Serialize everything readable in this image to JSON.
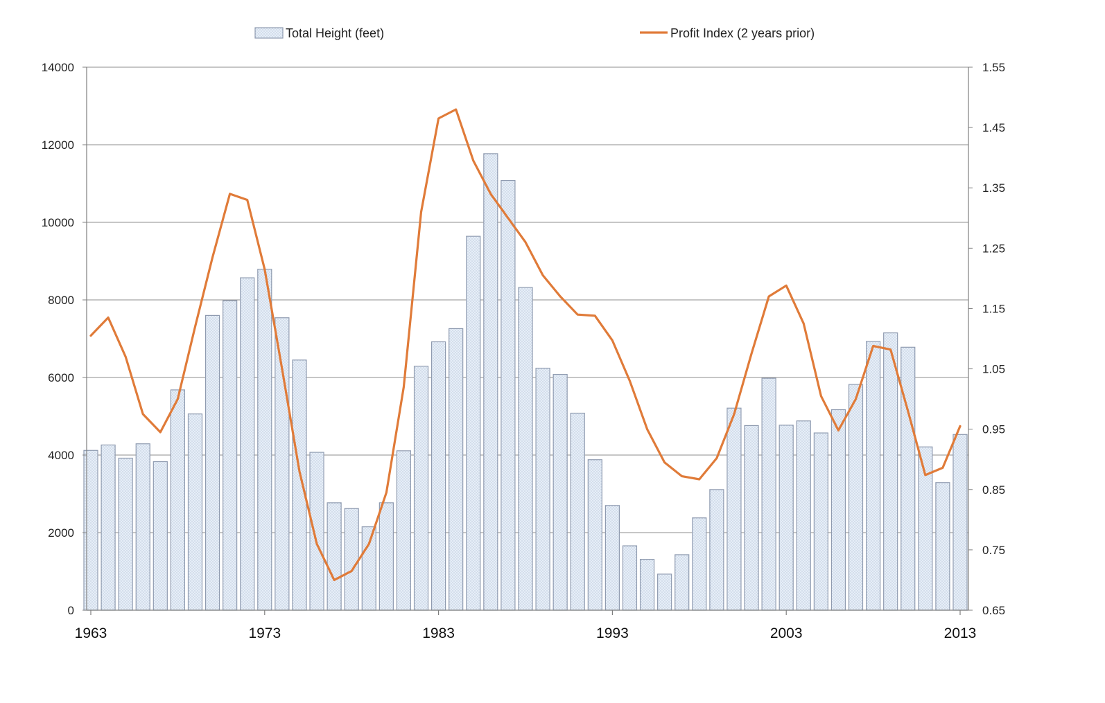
{
  "chart_data": {
    "type": "bar",
    "legend_position": "top",
    "grid": true,
    "colors": {
      "bar_fill": "#dfe9f5",
      "bar_stroke": "#8f9bb0",
      "line": "#e07b39",
      "grid": "#8c8c8c",
      "axis": "#7f7f7f"
    },
    "x": [
      1963,
      1964,
      1965,
      1966,
      1967,
      1968,
      1969,
      1970,
      1971,
      1972,
      1973,
      1974,
      1975,
      1976,
      1977,
      1978,
      1979,
      1980,
      1981,
      1982,
      1983,
      1984,
      1985,
      1986,
      1987,
      1988,
      1989,
      1990,
      1991,
      1992,
      1993,
      1994,
      1995,
      1996,
      1997,
      1998,
      1999,
      2000,
      2001,
      2002,
      2003,
      2004,
      2005,
      2006,
      2007,
      2008,
      2009,
      2010,
      2011,
      2012,
      2013
    ],
    "x_tick_labels": [
      "1963",
      "1973",
      "1983",
      "1993",
      "2003",
      "2013"
    ],
    "y_left": {
      "lim": [
        0,
        14000
      ],
      "ticks": [
        "0",
        "2000",
        "4000",
        "6000",
        "8000",
        "10000",
        "12000",
        "14000"
      ]
    },
    "y_right": {
      "lim": [
        0.65,
        1.55
      ],
      "ticks": [
        "0.65",
        "0.75",
        "0.85",
        "0.95",
        "1.05",
        "1.15",
        "1.25",
        "1.35",
        "1.45",
        "1.55"
      ]
    },
    "series": [
      {
        "name": "Total Height (feet)",
        "kind": "bar",
        "axis": "left",
        "values": [
          4120,
          4260,
          3920,
          4290,
          3830,
          5680,
          5060,
          7600,
          7980,
          8570,
          8790,
          7540,
          6450,
          4070,
          2770,
          2620,
          2150,
          2770,
          4110,
          6290,
          6920,
          7260,
          9640,
          11770,
          11080,
          8320,
          6240,
          6080,
          5080,
          3880,
          2700,
          1660,
          1310,
          930,
          1430,
          2380,
          3110,
          5210,
          4760,
          5980,
          4770,
          4880,
          4570,
          5170,
          5820,
          6930,
          7150,
          6780,
          4210,
          3290,
          4530
        ]
      },
      {
        "name": "Profit Index (2 years prior)",
        "kind": "line",
        "axis": "right",
        "values": [
          1.105,
          1.135,
          1.07,
          0.975,
          0.945,
          1.0,
          1.12,
          1.235,
          1.34,
          1.33,
          1.215,
          1.05,
          0.88,
          0.76,
          0.7,
          0.715,
          0.76,
          0.845,
          1.02,
          1.31,
          1.465,
          1.48,
          1.395,
          1.34,
          1.3,
          1.26,
          1.205,
          1.17,
          1.14,
          1.138,
          1.097,
          1.03,
          0.95,
          0.895,
          0.872,
          0.867,
          0.902,
          0.975,
          1.075,
          1.17,
          1.188,
          1.125,
          1.005,
          0.948,
          1.0,
          1.088,
          1.082,
          0.98,
          0.874,
          0.886,
          0.955
        ]
      }
    ]
  }
}
